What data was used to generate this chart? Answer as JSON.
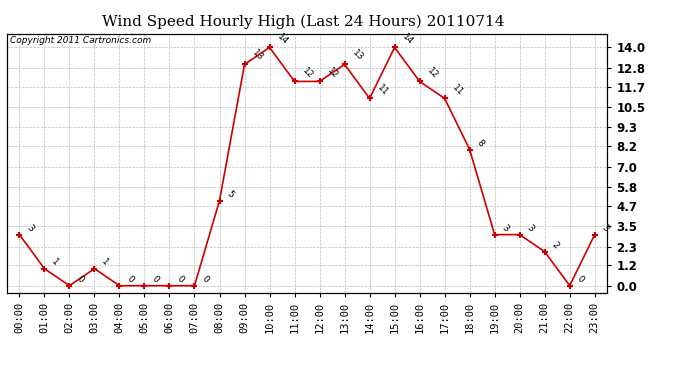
{
  "title": "Wind Speed Hourly High (Last 24 Hours) 20110714",
  "copyright": "Copyright 2011 Cartronics.com",
  "hours": [
    "00:00",
    "01:00",
    "02:00",
    "03:00",
    "04:00",
    "05:00",
    "06:00",
    "07:00",
    "08:00",
    "09:00",
    "10:00",
    "11:00",
    "12:00",
    "13:00",
    "14:00",
    "15:00",
    "16:00",
    "17:00",
    "18:00",
    "19:00",
    "20:00",
    "21:00",
    "22:00",
    "23:00"
  ],
  "values": [
    3,
    1,
    0,
    1,
    0,
    0,
    0,
    0,
    5,
    13,
    14,
    12,
    12,
    13,
    11,
    14,
    12,
    11,
    8,
    3,
    3,
    2,
    0,
    3
  ],
  "line_color": "#cc0000",
  "marker_color": "#cc0000",
  "background_color": "#ffffff",
  "grid_color": "#bbbbbb",
  "yticks": [
    0.0,
    1.2,
    2.3,
    3.5,
    4.7,
    5.8,
    7.0,
    8.2,
    9.3,
    10.5,
    11.7,
    12.8,
    14.0
  ],
  "ylim": [
    -0.4,
    14.8
  ],
  "title_fontsize": 11,
  "copyright_fontsize": 6.5,
  "label_fontsize": 6.5,
  "tick_fontsize": 7.5,
  "ytick_fontsize": 8.5
}
